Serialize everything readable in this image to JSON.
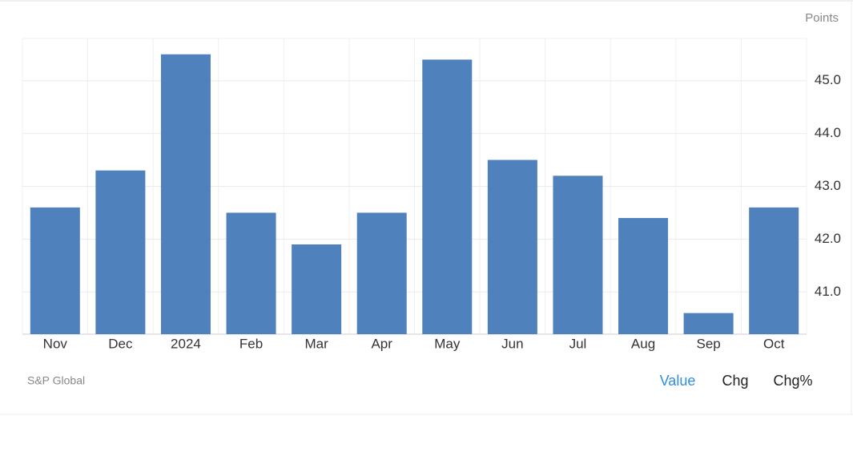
{
  "chart_data": {
    "type": "bar",
    "unit": "Points",
    "source": "S&P Global",
    "categories": [
      "Nov",
      "Dec",
      "2024",
      "Feb",
      "Mar",
      "Apr",
      "May",
      "Jun",
      "Jul",
      "Aug",
      "Sep",
      "Oct"
    ],
    "values": [
      42.6,
      43.3,
      45.5,
      42.5,
      41.9,
      42.5,
      45.4,
      43.5,
      43.2,
      42.4,
      40.6,
      42.6
    ],
    "color": "#4f81bd",
    "ylim": [
      40.2,
      45.8
    ],
    "yticks": [
      {
        "value": 41,
        "label": "41.0"
      },
      {
        "value": 42,
        "label": "42.0"
      },
      {
        "value": 43,
        "label": "43.0"
      },
      {
        "value": 44,
        "label": "44.0"
      },
      {
        "value": 45,
        "label": "45.0"
      }
    ],
    "grid": true,
    "y_axis_side": "right",
    "buttons": [
      "Value",
      "Chg",
      "Chg%"
    ]
  }
}
